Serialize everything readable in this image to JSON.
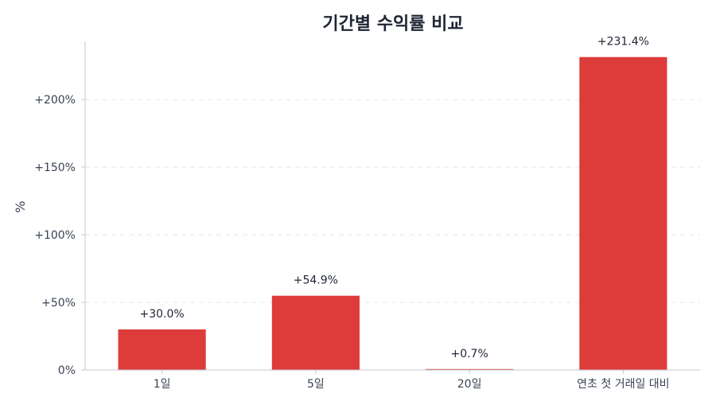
{
  "chart_data": {
    "type": "bar",
    "title": "기간별 수익률 비교",
    "ylabel": "%",
    "xlabel": "",
    "categories": [
      "1일",
      "5일",
      "20일",
      "연초 첫 거래일 대비"
    ],
    "values": [
      30.0,
      54.9,
      0.7,
      231.4
    ],
    "data_labels": [
      "+30.0%",
      "+54.9%",
      "+0.7%",
      "+231.4%"
    ],
    "yticks": [
      0,
      50,
      100,
      150,
      200
    ],
    "ytick_labels": [
      "0%",
      "+50%",
      "+100%",
      "+150%",
      "+200%"
    ],
    "ylim": [
      0,
      243
    ],
    "grid": true,
    "bar_color": "#de3b3b"
  }
}
